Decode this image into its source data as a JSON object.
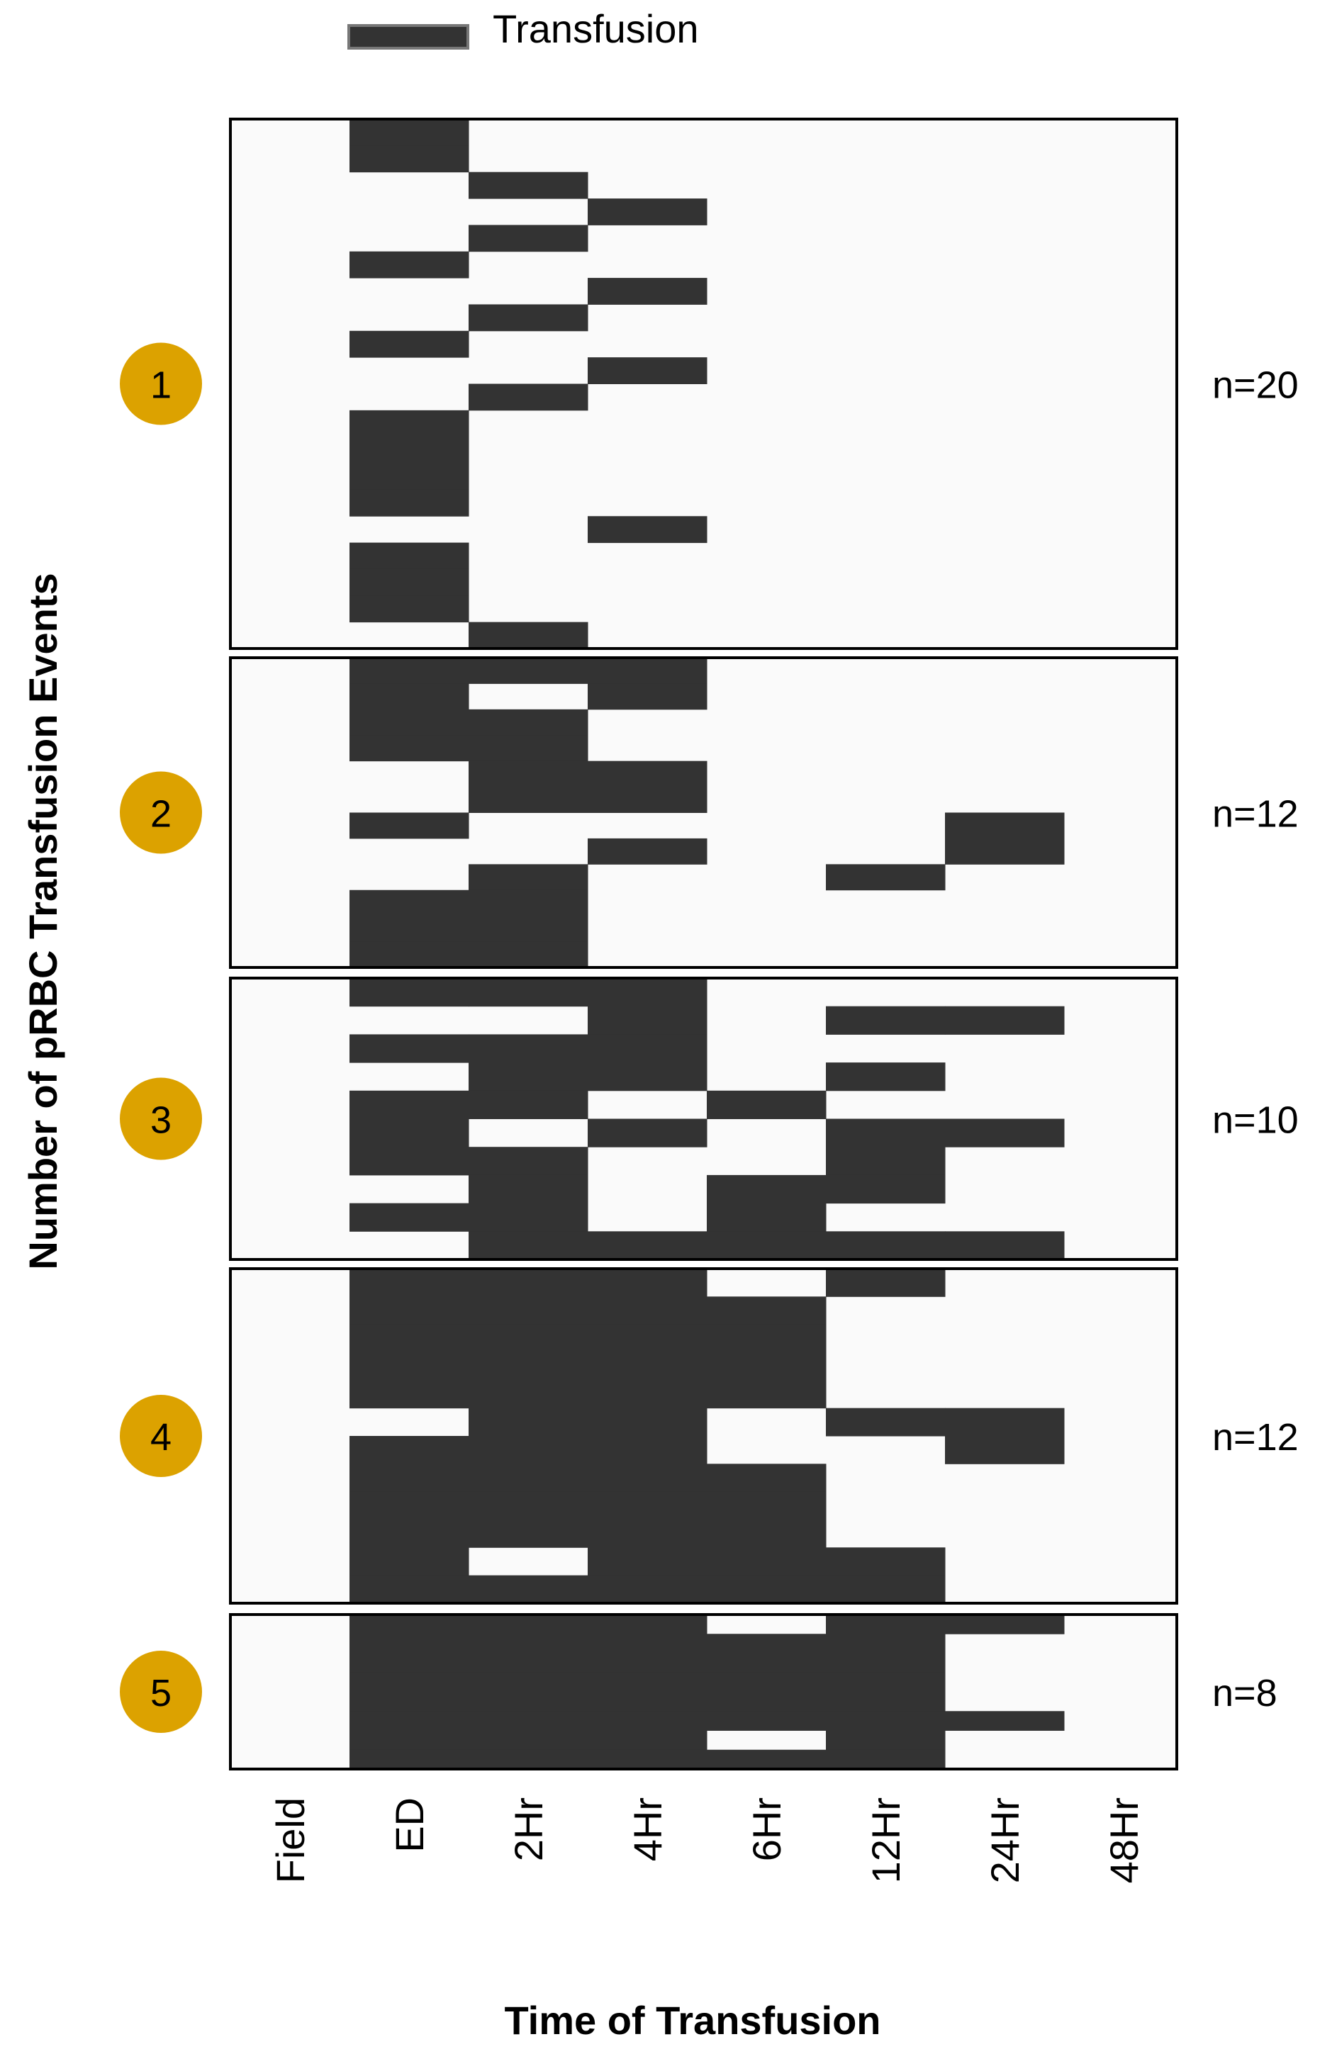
{
  "chart_data": {
    "type": "heatmap",
    "title": "",
    "legend": {
      "label": "Transfusion",
      "color": "#333333",
      "position": "top"
    },
    "xlabel": "Time of Transfusion",
    "ylabel": "Number of pRBC Transfusion Events",
    "columns": [
      "Field",
      "ED",
      "2Hr",
      "4Hr",
      "6Hr",
      "12Hr",
      "24Hr",
      "48Hr"
    ],
    "colors": {
      "filled": "#333333",
      "empty": "#fafafa",
      "badge": "#dca200",
      "frame": "#000000"
    },
    "panels": [
      {
        "group": "1",
        "n_label": "n=20",
        "rows": [
          [
            0,
            1,
            0,
            0,
            0,
            0,
            0,
            0
          ],
          [
            0,
            1,
            0,
            0,
            0,
            0,
            0,
            0
          ],
          [
            0,
            0,
            1,
            0,
            0,
            0,
            0,
            0
          ],
          [
            0,
            0,
            0,
            1,
            0,
            0,
            0,
            0
          ],
          [
            0,
            0,
            1,
            0,
            0,
            0,
            0,
            0
          ],
          [
            0,
            1,
            0,
            0,
            0,
            0,
            0,
            0
          ],
          [
            0,
            0,
            0,
            1,
            0,
            0,
            0,
            0
          ],
          [
            0,
            0,
            1,
            0,
            0,
            0,
            0,
            0
          ],
          [
            0,
            1,
            0,
            0,
            0,
            0,
            0,
            0
          ],
          [
            0,
            0,
            0,
            1,
            0,
            0,
            0,
            0
          ],
          [
            0,
            0,
            1,
            0,
            0,
            0,
            0,
            0
          ],
          [
            0,
            1,
            0,
            0,
            0,
            0,
            0,
            0
          ],
          [
            0,
            1,
            0,
            0,
            0,
            0,
            0,
            0
          ],
          [
            0,
            1,
            0,
            0,
            0,
            0,
            0,
            0
          ],
          [
            0,
            1,
            0,
            0,
            0,
            0,
            0,
            0
          ],
          [
            0,
            0,
            0,
            1,
            0,
            0,
            0,
            0
          ],
          [
            0,
            1,
            0,
            0,
            0,
            0,
            0,
            0
          ],
          [
            0,
            1,
            0,
            0,
            0,
            0,
            0,
            0
          ],
          [
            0,
            1,
            0,
            0,
            0,
            0,
            0,
            0
          ],
          [
            0,
            0,
            1,
            0,
            0,
            0,
            0,
            0
          ]
        ]
      },
      {
        "group": "2",
        "n_label": "n=12",
        "rows": [
          [
            0,
            1,
            1,
            1,
            0,
            0,
            0,
            0
          ],
          [
            0,
            1,
            0,
            1,
            0,
            0,
            0,
            0
          ],
          [
            0,
            1,
            1,
            0,
            0,
            0,
            0,
            0
          ],
          [
            0,
            1,
            1,
            0,
            0,
            0,
            0,
            0
          ],
          [
            0,
            0,
            1,
            1,
            0,
            0,
            0,
            0
          ],
          [
            0,
            0,
            1,
            1,
            0,
            0,
            0,
            0
          ],
          [
            0,
            1,
            0,
            0,
            0,
            0,
            1,
            0
          ],
          [
            0,
            0,
            0,
            1,
            0,
            0,
            1,
            0
          ],
          [
            0,
            0,
            1,
            0,
            0,
            1,
            0,
            0
          ],
          [
            0,
            1,
            1,
            0,
            0,
            0,
            0,
            0
          ],
          [
            0,
            1,
            1,
            0,
            0,
            0,
            0,
            0
          ],
          [
            0,
            1,
            1,
            0,
            0,
            0,
            0,
            0
          ]
        ]
      },
      {
        "group": "3",
        "n_label": "n=10",
        "rows": [
          [
            0,
            1,
            1,
            1,
            0,
            0,
            0,
            0
          ],
          [
            0,
            0,
            0,
            1,
            0,
            1,
            1,
            0
          ],
          [
            0,
            1,
            1,
            1,
            0,
            0,
            0,
            0
          ],
          [
            0,
            0,
            1,
            1,
            0,
            1,
            0,
            0
          ],
          [
            0,
            1,
            1,
            0,
            1,
            0,
            0,
            0
          ],
          [
            0,
            1,
            0,
            1,
            0,
            1,
            1,
            0
          ],
          [
            0,
            1,
            1,
            0,
            0,
            1,
            0,
            0
          ],
          [
            0,
            0,
            1,
            0,
            1,
            1,
            0,
            0
          ],
          [
            0,
            1,
            1,
            0,
            1,
            0,
            0,
            0
          ],
          [
            0,
            0,
            1,
            1,
            1,
            1,
            1,
            0
          ]
        ]
      },
      {
        "group": "4",
        "n_label": "n=12",
        "rows": [
          [
            0,
            1,
            1,
            1,
            0,
            1,
            0,
            0
          ],
          [
            0,
            1,
            1,
            1,
            1,
            0,
            0,
            0
          ],
          [
            0,
            1,
            1,
            1,
            1,
            0,
            0,
            0
          ],
          [
            0,
            1,
            1,
            1,
            1,
            0,
            0,
            0
          ],
          [
            0,
            1,
            1,
            1,
            1,
            0,
            0,
            0
          ],
          [
            0,
            0,
            1,
            1,
            0,
            1,
            1,
            0
          ],
          [
            0,
            1,
            1,
            1,
            0,
            0,
            1,
            0
          ],
          [
            0,
            1,
            1,
            1,
            1,
            0,
            0,
            0
          ],
          [
            0,
            1,
            1,
            1,
            1,
            0,
            0,
            0
          ],
          [
            0,
            1,
            1,
            1,
            1,
            0,
            0,
            0
          ],
          [
            0,
            1,
            0,
            1,
            1,
            1,
            0,
            0
          ],
          [
            0,
            1,
            1,
            1,
            1,
            1,
            0,
            0
          ]
        ]
      },
      {
        "group": "5",
        "n_label": "n=8",
        "rows": [
          [
            0,
            1,
            1,
            1,
            0,
            1,
            1,
            0
          ],
          [
            0,
            1,
            1,
            1,
            1,
            1,
            0,
            0
          ],
          [
            0,
            1,
            1,
            1,
            1,
            1,
            0,
            0
          ],
          [
            0,
            1,
            1,
            1,
            1,
            1,
            0,
            0
          ],
          [
            0,
            1,
            1,
            1,
            1,
            1,
            0,
            0
          ],
          [
            0,
            1,
            1,
            1,
            1,
            1,
            1,
            0
          ],
          [
            0,
            1,
            1,
            1,
            0,
            1,
            0,
            0
          ],
          [
            0,
            1,
            1,
            1,
            1,
            1,
            0,
            0
          ]
        ]
      }
    ]
  }
}
